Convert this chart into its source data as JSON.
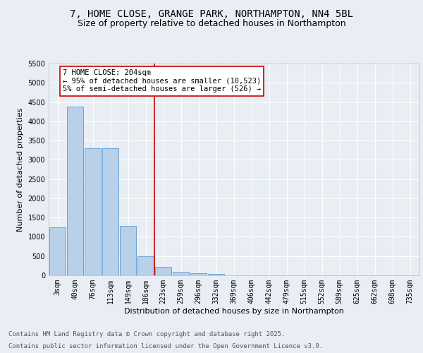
{
  "title_line1": "7, HOME CLOSE, GRANGE PARK, NORTHAMPTON, NN4 5BL",
  "title_line2": "Size of property relative to detached houses in Northampton",
  "xlabel": "Distribution of detached houses by size in Northampton",
  "ylabel": "Number of detached properties",
  "bar_color": "#b8d0e8",
  "bar_edge_color": "#5b9bd5",
  "bar_categories": [
    "3sqm",
    "40sqm",
    "76sqm",
    "113sqm",
    "149sqm",
    "186sqm",
    "223sqm",
    "259sqm",
    "296sqm",
    "332sqm",
    "369sqm",
    "406sqm",
    "442sqm",
    "479sqm",
    "515sqm",
    "552sqm",
    "589sqm",
    "625sqm",
    "662sqm",
    "698sqm",
    "735sqm"
  ],
  "bar_values": [
    1250,
    4380,
    3300,
    3300,
    1280,
    500,
    220,
    90,
    60,
    40,
    5,
    0,
    0,
    0,
    0,
    0,
    0,
    0,
    0,
    0,
    0
  ],
  "vline_x": 5.5,
  "vline_color": "#cc0000",
  "annotation_text": "7 HOME CLOSE: 204sqm\n← 95% of detached houses are smaller (10,523)\n5% of semi-detached houses are larger (526) →",
  "annotation_box_color": "#ffffff",
  "annotation_edge_color": "#cc0000",
  "ylim": [
    0,
    5500
  ],
  "yticks": [
    0,
    500,
    1000,
    1500,
    2000,
    2500,
    3000,
    3500,
    4000,
    4500,
    5000,
    5500
  ],
  "bg_color": "#e8eef4",
  "plot_bg_color": "#e8eef4",
  "footer_line1": "Contains HM Land Registry data © Crown copyright and database right 2025.",
  "footer_line2": "Contains public sector information licensed under the Open Government Licence v3.0.",
  "title_fontsize": 10,
  "subtitle_fontsize": 9,
  "axis_label_fontsize": 8,
  "tick_fontsize": 7,
  "annotation_fontsize": 7.5,
  "footer_fontsize": 6.5
}
